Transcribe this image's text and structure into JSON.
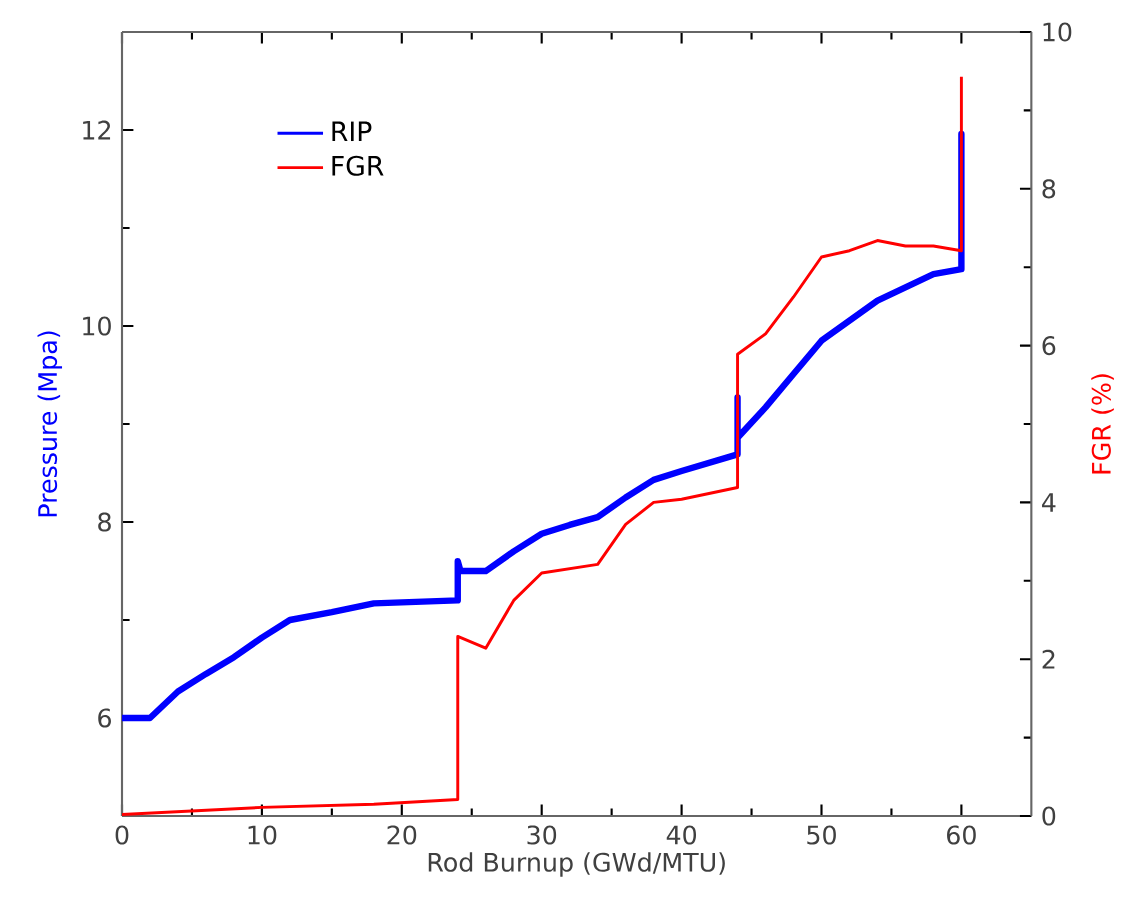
{
  "chart_data": {
    "type": "line",
    "xlabel": "Rod Burnup (GWd/MTU)",
    "ylabel": "Pressure (Mpa)",
    "y2label": "FGR (%)",
    "xlim": [
      0,
      65
    ],
    "xticks": [
      0,
      10,
      20,
      30,
      40,
      50,
      60
    ],
    "ylim": [
      5,
      13
    ],
    "yticks": [
      6,
      8,
      10,
      12
    ],
    "y2lim": [
      0,
      10
    ],
    "y2ticks": [
      0,
      2,
      4,
      6,
      8,
      10
    ],
    "legend": "top left",
    "marker": "none",
    "line_style": "solid",
    "grid": false,
    "series": [
      {
        "name": "RIP",
        "color": "#0000ff",
        "x": [
          0,
          2,
          4,
          6,
          8,
          10,
          12,
          15,
          18,
          24,
          24,
          24.2,
          26,
          28,
          30,
          32,
          34,
          36,
          38,
          40,
          44,
          44,
          44,
          46,
          48,
          50,
          54,
          58,
          60,
          60,
          60
        ],
        "values": [
          6,
          6,
          6.27,
          6.45,
          6.62,
          6.82,
          7.0,
          7.08,
          7.17,
          7.2,
          7.6,
          7.5,
          7.5,
          7.7,
          7.88,
          7.97,
          8.05,
          8.25,
          8.43,
          8.52,
          8.69,
          9.27,
          8.86,
          9.17,
          9.51,
          9.85,
          10.26,
          10.53,
          10.58,
          11.96,
          10.58
        ]
      },
      {
        "name": "FGR",
        "color": "#ff0000",
        "axis": "y2",
        "x": [
          0,
          10,
          18,
          24,
          24,
          26,
          28,
          30,
          34,
          36,
          38,
          40,
          44,
          44,
          46,
          48,
          50,
          52,
          54,
          56,
          58,
          60,
          60
        ],
        "values": [
          0.02,
          0.11,
          0.15,
          0.21,
          2.29,
          2.14,
          2.75,
          3.1,
          3.21,
          3.72,
          4.0,
          4.04,
          4.19,
          5.89,
          6.15,
          6.62,
          7.13,
          7.21,
          7.34,
          7.27,
          7.27,
          7.21,
          9.43
        ]
      }
    ]
  }
}
